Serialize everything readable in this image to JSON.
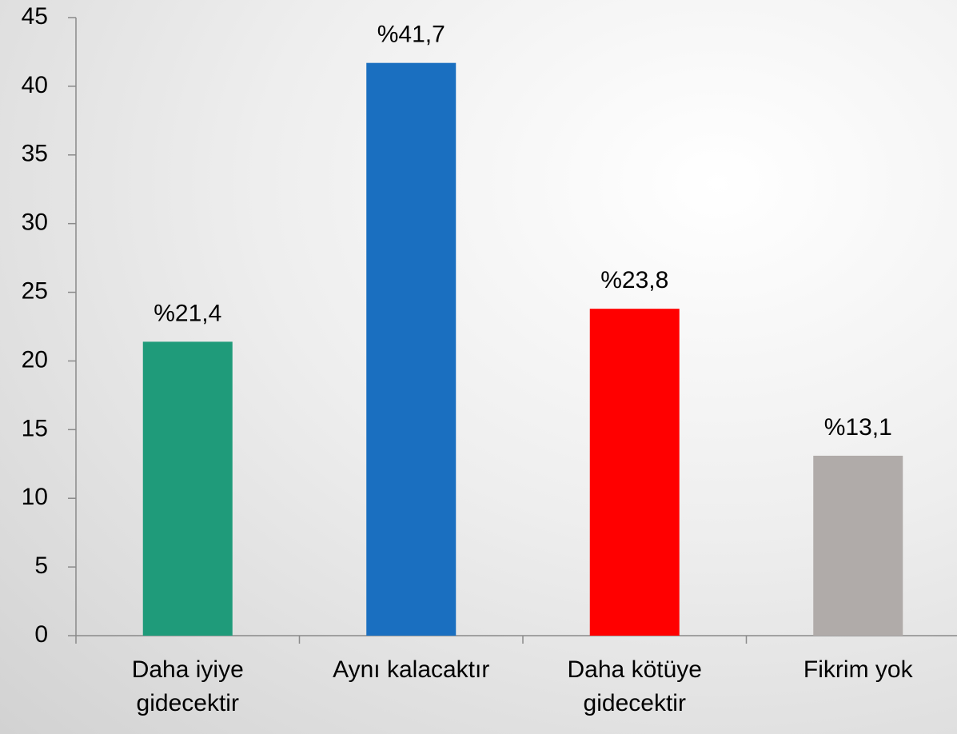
{
  "chart_data": {
    "type": "bar",
    "categories": [
      "Daha iyiye gidecektir",
      "Aynı kalacaktır",
      "Daha kötüye gidecektir",
      "Fikrim yok"
    ],
    "values": [
      21.4,
      41.7,
      23.8,
      13.1
    ],
    "value_labels": [
      "%21,4",
      "%41,7",
      "%23,8",
      "%13,1"
    ],
    "colors": [
      "#1f9b7a",
      "#1a6fc0",
      "#ff0000",
      "#b0aba9"
    ],
    "ylim": [
      0,
      45
    ],
    "yticks": [
      0,
      5,
      10,
      15,
      20,
      25,
      30,
      35,
      40,
      45
    ],
    "grid": false
  }
}
